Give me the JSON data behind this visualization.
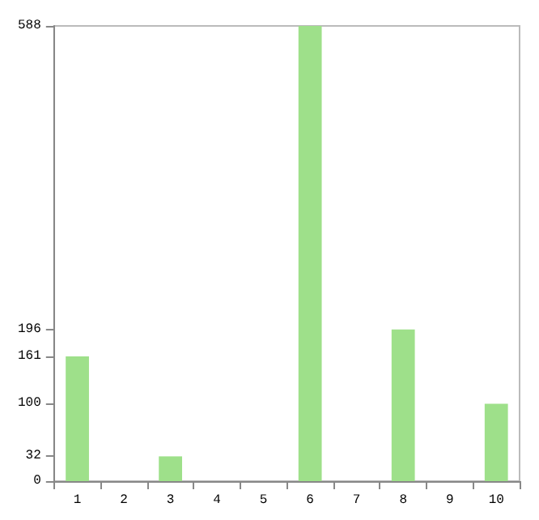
{
  "chart_data": {
    "type": "bar",
    "categories": [
      "1",
      "2",
      "3",
      "4",
      "5",
      "6",
      "7",
      "8",
      "9",
      "10"
    ],
    "values": [
      161,
      0,
      32,
      0,
      0,
      588,
      0,
      196,
      0,
      100
    ],
    "color": "#9ee08a",
    "ylim": [
      0,
      588
    ],
    "yticks": [
      0,
      32,
      100,
      161,
      196,
      588
    ],
    "grid": false
  }
}
